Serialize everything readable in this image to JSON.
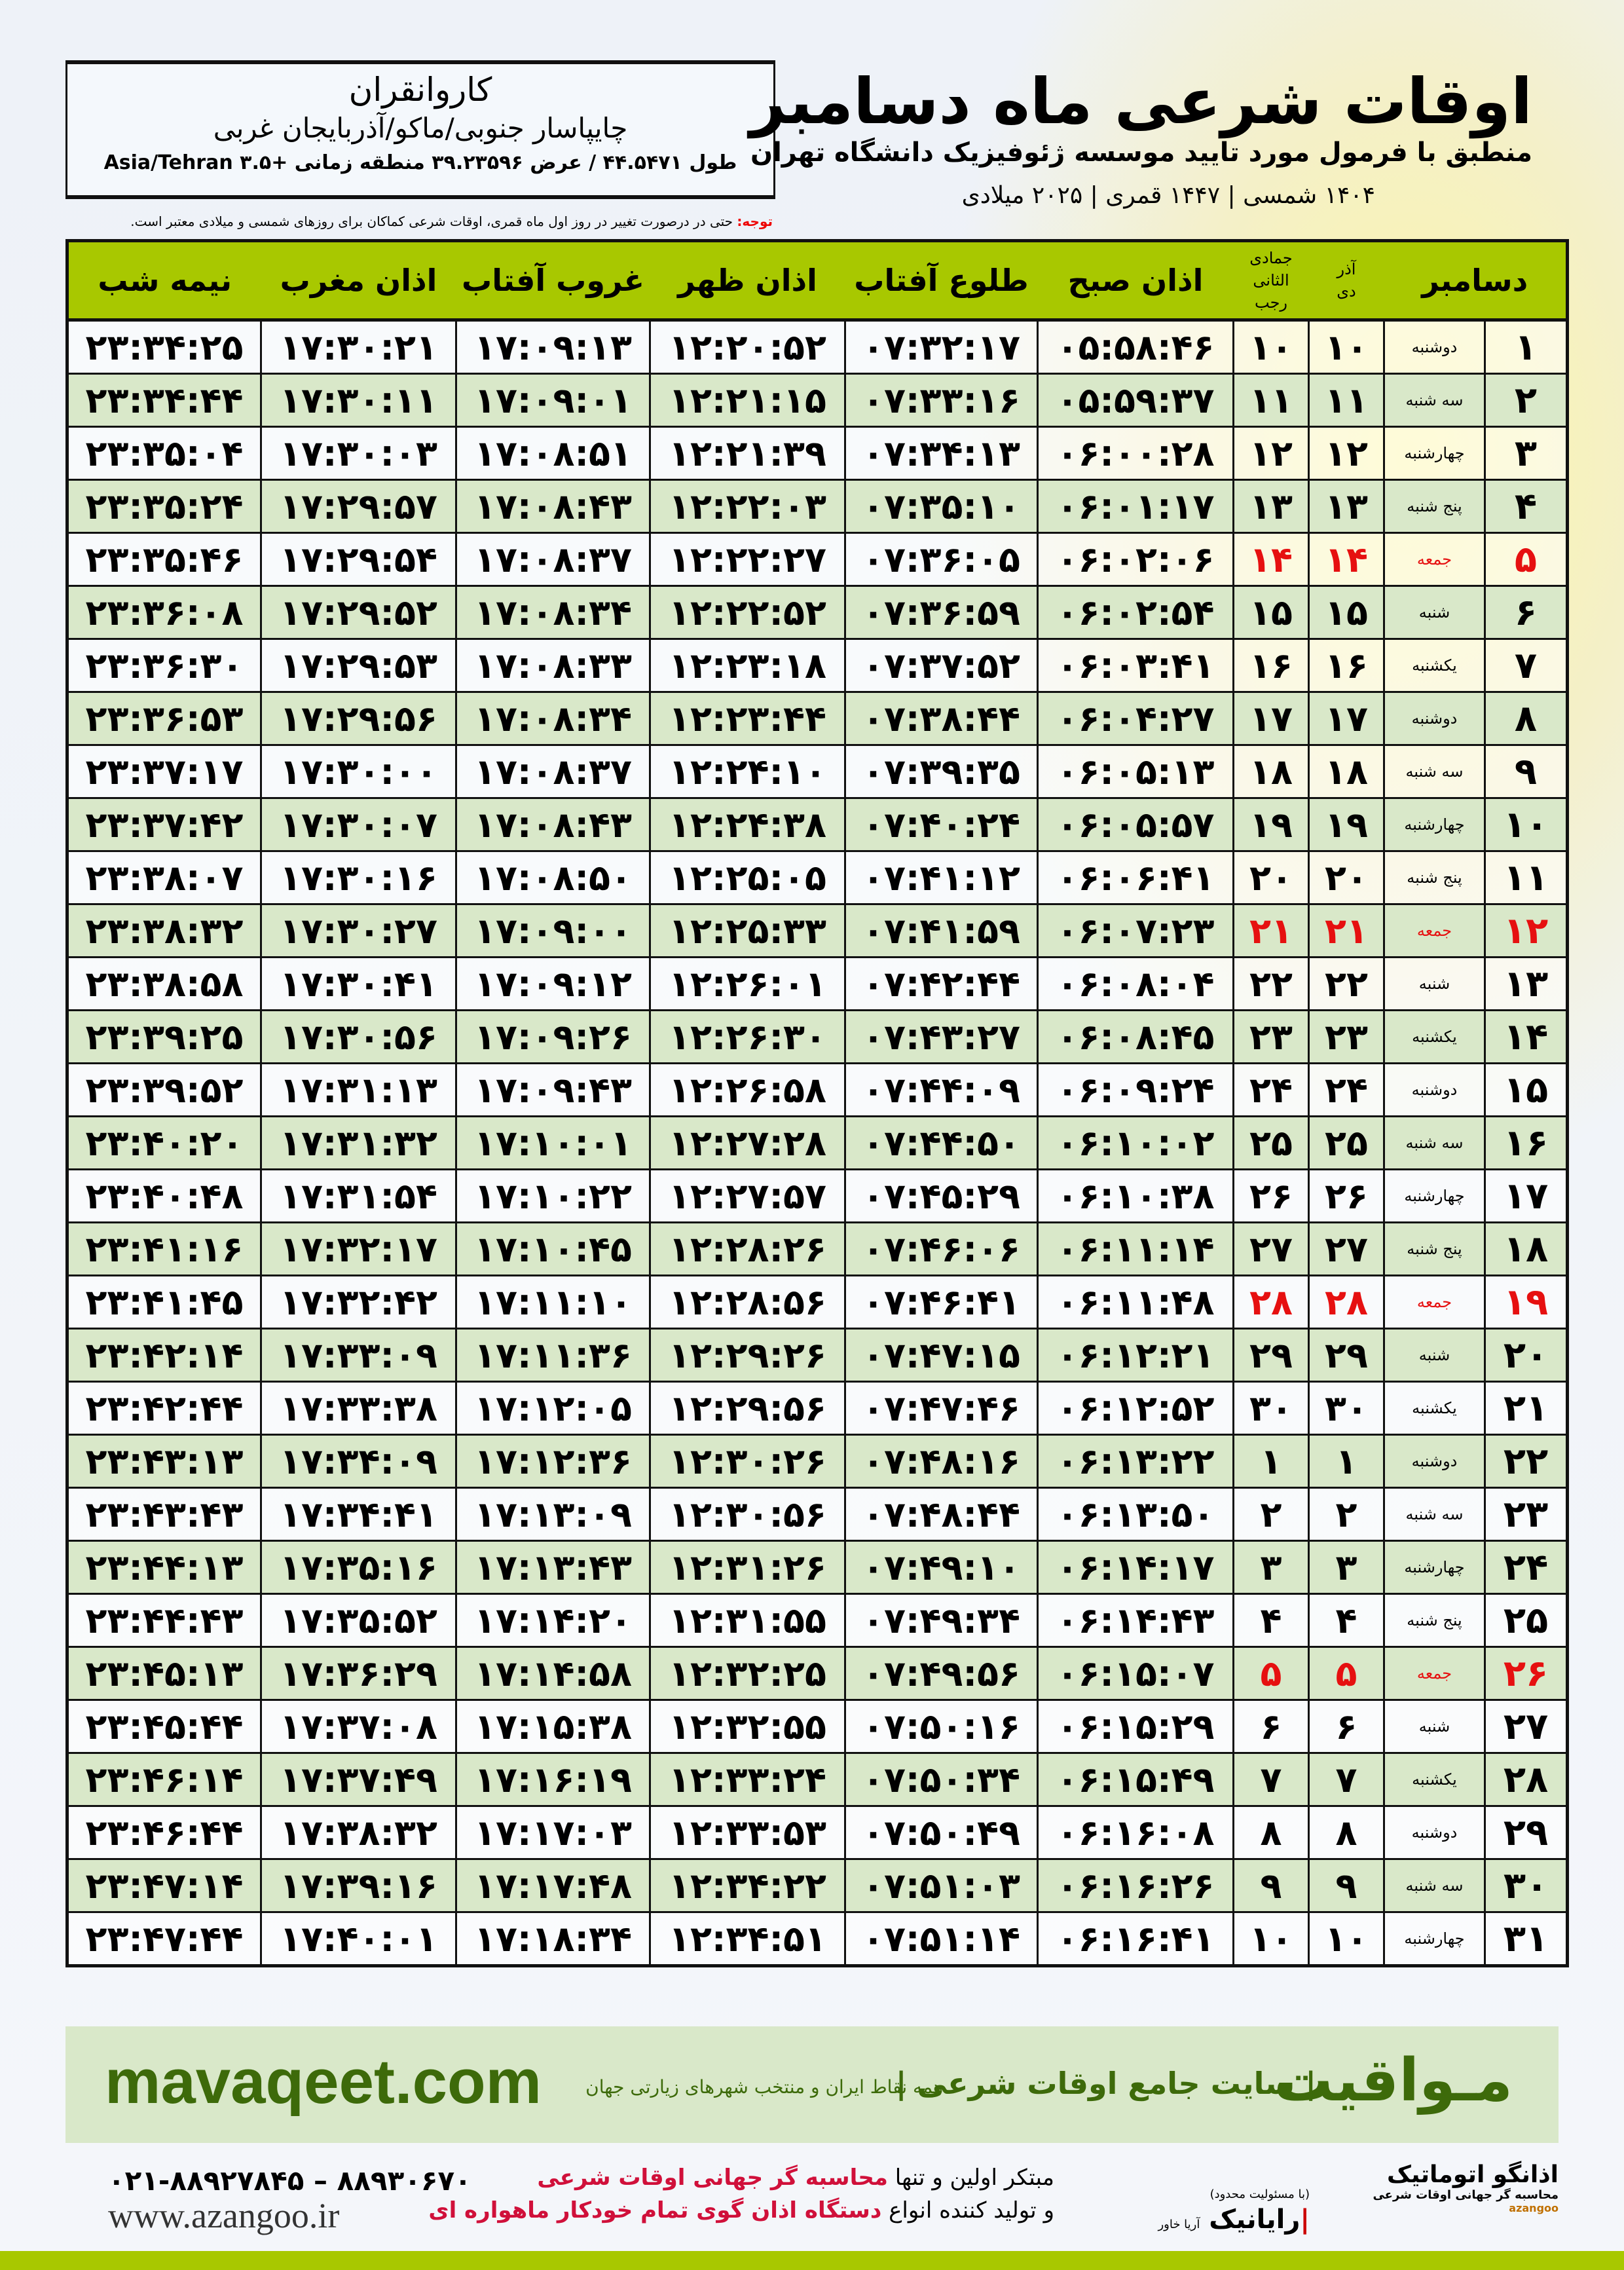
{
  "header": {
    "title": "اوقات شرعی ماه دسامبر",
    "subtitle": "منطبق با فرمول مورد تایید موسسه ژئوفیزیک دانشگاه تهران",
    "years": "۱۴۰۴ شمسی | ۱۴۴۷ قمری | ۲۰۲۵ میلادی"
  },
  "location": {
    "city": "کاروانقران",
    "region": "چایپاسار جنوبی/ماکو/آذربایجان غربی",
    "coords": "طول ۴۴.۵۴۷۱ / عرض ۳۹.۲۳۵۹۶ منطقه زمانی +۳.۵ Asia/Tehran"
  },
  "note": {
    "label": "توجه:",
    "text": " حتی در درصورت تغییر در روز اول ماه قمری، اوقات شرعی کماکان برای روزهای شمسی و میلادی معتبر است."
  },
  "table": {
    "headers": {
      "month": "دسامبر",
      "shamsi_top": "آذر",
      "shamsi_bottom": "دی",
      "qamari_top": "جمادی الثانی",
      "qamari_bottom": "رجب",
      "sobh": "اذان صبح",
      "toloo": "طلوع آفتاب",
      "zohr": "اذان ظهر",
      "ghoroob": "غروب آفتاب",
      "maghreb": "اذان مغرب",
      "nimeshab": "نیمه شب"
    },
    "friday_color": "#e61010",
    "rows": [
      [
        "۱",
        "دوشنبه",
        "۱۰",
        "۱۰",
        "۰۵:۵۸:۴۶",
        "۰۷:۳۲:۱۷",
        "۱۲:۲۰:۵۲",
        "۱۷:۰۹:۱۳",
        "۱۷:۳۰:۲۱",
        "۲۳:۳۴:۲۵"
      ],
      [
        "۲",
        "سه شنبه",
        "۱۱",
        "۱۱",
        "۰۵:۵۹:۳۷",
        "۰۷:۳۳:۱۶",
        "۱۲:۲۱:۱۵",
        "۱۷:۰۹:۰۱",
        "۱۷:۳۰:۱۱",
        "۲۳:۳۴:۴۴"
      ],
      [
        "۳",
        "چهارشنبه",
        "۱۲",
        "۱۲",
        "۰۶:۰۰:۲۸",
        "۰۷:۳۴:۱۳",
        "۱۲:۲۱:۳۹",
        "۱۷:۰۸:۵۱",
        "۱۷:۳۰:۰۳",
        "۲۳:۳۵:۰۴"
      ],
      [
        "۴",
        "پنج شنبه",
        "۱۳",
        "۱۳",
        "۰۶:۰۱:۱۷",
        "۰۷:۳۵:۱۰",
        "۱۲:۲۲:۰۳",
        "۱۷:۰۸:۴۳",
        "۱۷:۲۹:۵۷",
        "۲۳:۳۵:۲۴"
      ],
      [
        "۵",
        "جمعه",
        "۱۴",
        "۱۴",
        "۰۶:۰۲:۰۶",
        "۰۷:۳۶:۰۵",
        "۱۲:۲۲:۲۷",
        "۱۷:۰۸:۳۷",
        "۱۷:۲۹:۵۴",
        "۲۳:۳۵:۴۶"
      ],
      [
        "۶",
        "شنبه",
        "۱۵",
        "۱۵",
        "۰۶:۰۲:۵۴",
        "۰۷:۳۶:۵۹",
        "۱۲:۲۲:۵۲",
        "۱۷:۰۸:۳۴",
        "۱۷:۲۹:۵۲",
        "۲۳:۳۶:۰۸"
      ],
      [
        "۷",
        "یکشنبه",
        "۱۶",
        "۱۶",
        "۰۶:۰۳:۴۱",
        "۰۷:۳۷:۵۲",
        "۱۲:۲۳:۱۸",
        "۱۷:۰۸:۳۳",
        "۱۷:۲۹:۵۳",
        "۲۳:۳۶:۳۰"
      ],
      [
        "۸",
        "دوشنبه",
        "۱۷",
        "۱۷",
        "۰۶:۰۴:۲۷",
        "۰۷:۳۸:۴۴",
        "۱۲:۲۳:۴۴",
        "۱۷:۰۸:۳۴",
        "۱۷:۲۹:۵۶",
        "۲۳:۳۶:۵۳"
      ],
      [
        "۹",
        "سه شنبه",
        "۱۸",
        "۱۸",
        "۰۶:۰۵:۱۳",
        "۰۷:۳۹:۳۵",
        "۱۲:۲۴:۱۰",
        "۱۷:۰۸:۳۷",
        "۱۷:۳۰:۰۰",
        "۲۳:۳۷:۱۷"
      ],
      [
        "۱۰",
        "چهارشنبه",
        "۱۹",
        "۱۹",
        "۰۶:۰۵:۵۷",
        "۰۷:۴۰:۲۴",
        "۱۲:۲۴:۳۸",
        "۱۷:۰۸:۴۳",
        "۱۷:۳۰:۰۷",
        "۲۳:۳۷:۴۲"
      ],
      [
        "۱۱",
        "پنج شنبه",
        "۲۰",
        "۲۰",
        "۰۶:۰۶:۴۱",
        "۰۷:۴۱:۱۲",
        "۱۲:۲۵:۰۵",
        "۱۷:۰۸:۵۰",
        "۱۷:۳۰:۱۶",
        "۲۳:۳۸:۰۷"
      ],
      [
        "۱۲",
        "جمعه",
        "۲۱",
        "۲۱",
        "۰۶:۰۷:۲۳",
        "۰۷:۴۱:۵۹",
        "۱۲:۲۵:۳۳",
        "۱۷:۰۹:۰۰",
        "۱۷:۳۰:۲۷",
        "۲۳:۳۸:۳۲"
      ],
      [
        "۱۳",
        "شنبه",
        "۲۲",
        "۲۲",
        "۰۶:۰۸:۰۴",
        "۰۷:۴۲:۴۴",
        "۱۲:۲۶:۰۱",
        "۱۷:۰۹:۱۲",
        "۱۷:۳۰:۴۱",
        "۲۳:۳۸:۵۸"
      ],
      [
        "۱۴",
        "یکشنبه",
        "۲۳",
        "۲۳",
        "۰۶:۰۸:۴۵",
        "۰۷:۴۳:۲۷",
        "۱۲:۲۶:۳۰",
        "۱۷:۰۹:۲۶",
        "۱۷:۳۰:۵۶",
        "۲۳:۳۹:۲۵"
      ],
      [
        "۱۵",
        "دوشنبه",
        "۲۴",
        "۲۴",
        "۰۶:۰۹:۲۴",
        "۰۷:۴۴:۰۹",
        "۱۲:۲۶:۵۸",
        "۱۷:۰۹:۴۳",
        "۱۷:۳۱:۱۳",
        "۲۳:۳۹:۵۲"
      ],
      [
        "۱۶",
        "سه شنبه",
        "۲۵",
        "۲۵",
        "۰۶:۱۰:۰۲",
        "۰۷:۴۴:۵۰",
        "۱۲:۲۷:۲۸",
        "۱۷:۱۰:۰۱",
        "۱۷:۳۱:۳۲",
        "۲۳:۴۰:۲۰"
      ],
      [
        "۱۷",
        "چهارشنبه",
        "۲۶",
        "۲۶",
        "۰۶:۱۰:۳۸",
        "۰۷:۴۵:۲۹",
        "۱۲:۲۷:۵۷",
        "۱۷:۱۰:۲۲",
        "۱۷:۳۱:۵۴",
        "۲۳:۴۰:۴۸"
      ],
      [
        "۱۸",
        "پنج شنبه",
        "۲۷",
        "۲۷",
        "۰۶:۱۱:۱۴",
        "۰۷:۴۶:۰۶",
        "۱۲:۲۸:۲۶",
        "۱۷:۱۰:۴۵",
        "۱۷:۳۲:۱۷",
        "۲۳:۴۱:۱۶"
      ],
      [
        "۱۹",
        "جمعه",
        "۲۸",
        "۲۸",
        "۰۶:۱۱:۴۸",
        "۰۷:۴۶:۴۱",
        "۱۲:۲۸:۵۶",
        "۱۷:۱۱:۱۰",
        "۱۷:۳۲:۴۲",
        "۲۳:۴۱:۴۵"
      ],
      [
        "۲۰",
        "شنبه",
        "۲۹",
        "۲۹",
        "۰۶:۱۲:۲۱",
        "۰۷:۴۷:۱۵",
        "۱۲:۲۹:۲۶",
        "۱۷:۱۱:۳۶",
        "۱۷:۳۳:۰۹",
        "۲۳:۴۲:۱۴"
      ],
      [
        "۲۱",
        "یکشنبه",
        "۳۰",
        "۳۰",
        "۰۶:۱۲:۵۲",
        "۰۷:۴۷:۴۶",
        "۱۲:۲۹:۵۶",
        "۱۷:۱۲:۰۵",
        "۱۷:۳۳:۳۸",
        "۲۳:۴۲:۴۴"
      ],
      [
        "۲۲",
        "دوشنبه",
        "۱",
        "۱",
        "۰۶:۱۳:۲۲",
        "۰۷:۴۸:۱۶",
        "۱۲:۳۰:۲۶",
        "۱۷:۱۲:۳۶",
        "۱۷:۳۴:۰۹",
        "۲۳:۴۳:۱۳"
      ],
      [
        "۲۳",
        "سه شنبه",
        "۲",
        "۲",
        "۰۶:۱۳:۵۰",
        "۰۷:۴۸:۴۴",
        "۱۲:۳۰:۵۶",
        "۱۷:۱۳:۰۹",
        "۱۷:۳۴:۴۱",
        "۲۳:۴۳:۴۳"
      ],
      [
        "۲۴",
        "چهارشنبه",
        "۳",
        "۳",
        "۰۶:۱۴:۱۷",
        "۰۷:۴۹:۱۰",
        "۱۲:۳۱:۲۶",
        "۱۷:۱۳:۴۳",
        "۱۷:۳۵:۱۶",
        "۲۳:۴۴:۱۳"
      ],
      [
        "۲۵",
        "پنج شنبه",
        "۴",
        "۴",
        "۰۶:۱۴:۴۳",
        "۰۷:۴۹:۳۴",
        "۱۲:۳۱:۵۵",
        "۱۷:۱۴:۲۰",
        "۱۷:۳۵:۵۲",
        "۲۳:۴۴:۴۳"
      ],
      [
        "۲۶",
        "جمعه",
        "۵",
        "۵",
        "۰۶:۱۵:۰۷",
        "۰۷:۴۹:۵۶",
        "۱۲:۳۲:۲۵",
        "۱۷:۱۴:۵۸",
        "۱۷:۳۶:۲۹",
        "۲۳:۴۵:۱۳"
      ],
      [
        "۲۷",
        "شنبه",
        "۶",
        "۶",
        "۰۶:۱۵:۲۹",
        "۰۷:۵۰:۱۶",
        "۱۲:۳۲:۵۵",
        "۱۷:۱۵:۳۸",
        "۱۷:۳۷:۰۸",
        "۲۳:۴۵:۴۴"
      ],
      [
        "۲۸",
        "یکشنبه",
        "۷",
        "۷",
        "۰۶:۱۵:۴۹",
        "۰۷:۵۰:۳۴",
        "۱۲:۳۳:۲۴",
        "۱۷:۱۶:۱۹",
        "۱۷:۳۷:۴۹",
        "۲۳:۴۶:۱۴"
      ],
      [
        "۲۹",
        "دوشنبه",
        "۸",
        "۸",
        "۰۶:۱۶:۰۸",
        "۰۷:۵۰:۴۹",
        "۱۲:۳۳:۵۳",
        "۱۷:۱۷:۰۳",
        "۱۷:۳۸:۳۲",
        "۲۳:۴۶:۴۴"
      ],
      [
        "۳۰",
        "سه شنبه",
        "۹",
        "۹",
        "۰۶:۱۶:۲۶",
        "۰۷:۵۱:۰۳",
        "۱۲:۳۴:۲۲",
        "۱۷:۱۷:۴۸",
        "۱۷:۳۹:۱۶",
        "۲۳:۴۷:۱۴"
      ],
      [
        "۳۱",
        "چهارشنبه",
        "۱۰",
        "۱۰",
        "۰۶:۱۶:۴۱",
        "۰۷:۵۱:۱۴",
        "۱۲:۳۴:۵۱",
        "۱۷:۱۸:۳۴",
        "۱۷:۴۰:۰۱",
        "۲۳:۴۷:۴۴"
      ]
    ]
  },
  "banner": {
    "brand": "مـواقیت",
    "tagline": "| سایت جامع اوقات شرعی |",
    "tagline2": "همه نقاط ایران و منتخب شهرهای زیارتی جهان",
    "site": "mavaqeet.com"
  },
  "footer": {
    "phone": "۰۲۱-۸۸۹۲۷۸۴۵ – ۸۸۹۳۰۶۷۰",
    "web": "www.azangoo.ir",
    "ad_line1_a": "مبتکر اولین و تنها ",
    "ad_line1_b": "محاسبه گر جهانی اوقات شرعی",
    "ad_line2_a": "و تولید کننده انواع ",
    "ad_line2_b": "دستگاه اذان گوی تمام خودکار ماهواره ای",
    "logo1": "اذانگو اتوماتیک",
    "logo1_sub": "محاسبه گر جهانی اوقات شرعی",
    "logo1_en": "azangoo",
    "logo2": "رایانیک",
    "logo2_sub": "آریا خاور",
    "logo2_note": "(با مسئولیت محدود)"
  }
}
